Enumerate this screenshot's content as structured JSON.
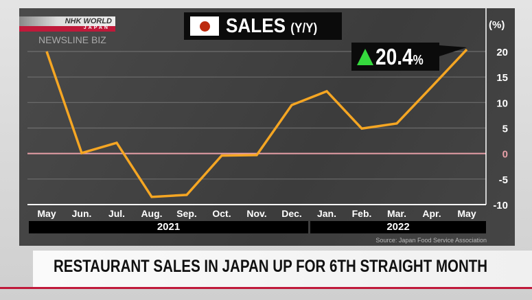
{
  "branding": {
    "logo_text": "NHK WORLD",
    "logo_sub": "JAPAN",
    "program": "NEWSLINE BIZ"
  },
  "headline": "RESTAURANT SALES IN JAPAN UP FOR 6TH STRAIGHT MONTH",
  "chart_data": {
    "type": "line",
    "title": "SALES",
    "title_suffix": "(Y/Y)",
    "unit": "(%)",
    "categories": [
      "May",
      "Jun.",
      "Jul.",
      "Aug.",
      "Sep.",
      "Oct.",
      "Nov.",
      "Dec.",
      "Jan.",
      "Feb.",
      "Mar.",
      "Apr.",
      "May"
    ],
    "years": [
      {
        "label": "2021",
        "months": 8
      },
      {
        "label": "2022",
        "months": 5
      }
    ],
    "values": [
      20.0,
      0.1,
      2.1,
      -8.5,
      -8.1,
      -0.4,
      -0.3,
      9.5,
      12.2,
      4.9,
      5.9,
      13.1,
      20.4
    ],
    "yticks": [
      20,
      15,
      10,
      5,
      0,
      -5,
      -10
    ],
    "ylim": [
      -10,
      20
    ],
    "grid": true,
    "highlight": {
      "label": "20.4",
      "unit": "%",
      "direction": "up"
    },
    "source": "Source: Japan Food Service Association",
    "colors": {
      "line": "#f5a623",
      "zero_line": "#e8a0a8",
      "up_arrow": "#35d93d",
      "flag_red": "#bc2a0e",
      "accent_red": "#c0193a"
    }
  }
}
